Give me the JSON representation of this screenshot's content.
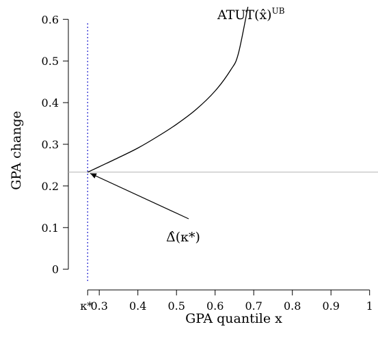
{
  "chart_data": {
    "type": "line",
    "xlabel": "GPA quantile x",
    "ylabel": "GPA change",
    "xlim": [
      0.22,
      1.02
    ],
    "ylim": [
      -0.03,
      0.63
    ],
    "x_ticks": [
      {
        "value": 0.3,
        "label": "0.3"
      },
      {
        "value": 0.4,
        "label": "0.4"
      },
      {
        "value": 0.5,
        "label": "0.5"
      },
      {
        "value": 0.6,
        "label": "0.6"
      },
      {
        "value": 0.7,
        "label": "0.7"
      },
      {
        "value": 0.8,
        "label": "0.8"
      },
      {
        "value": 0.9,
        "label": "0.9"
      },
      {
        "value": 1.0,
        "label": "1"
      }
    ],
    "y_ticks": [
      {
        "value": 0,
        "label": "0"
      },
      {
        "value": 0.1,
        "label": "0.1"
      },
      {
        "value": 0.2,
        "label": "0.2"
      },
      {
        "value": 0.3,
        "label": "0.3"
      },
      {
        "value": 0.4,
        "label": "0.4"
      },
      {
        "value": 0.5,
        "label": "0.5"
      },
      {
        "value": 0.6,
        "label": "0.6"
      }
    ],
    "kappa_star": {
      "x": 0.27,
      "label": "κ*",
      "color": "#3b3bd6"
    },
    "horizontal_line": {
      "y": 0.233,
      "color": "#b4b4b4"
    },
    "series": [
      {
        "name": "ATUT(x̂)UB",
        "color": "#000000",
        "x": [
          0.27,
          0.3,
          0.35,
          0.4,
          0.45,
          0.5,
          0.55,
          0.6,
          0.64,
          0.66,
          0.685
        ],
        "y": [
          0.233,
          0.246,
          0.268,
          0.291,
          0.318,
          0.348,
          0.383,
          0.428,
          0.478,
          0.517,
          0.63
        ]
      }
    ],
    "annotations": {
      "curve_label": {
        "text": "ATUT(x̂)",
        "superscript": "UB"
      },
      "point_label": {
        "text": "Δ̂(κ*)",
        "target_x": 0.27,
        "target_y": 0.233
      }
    }
  }
}
